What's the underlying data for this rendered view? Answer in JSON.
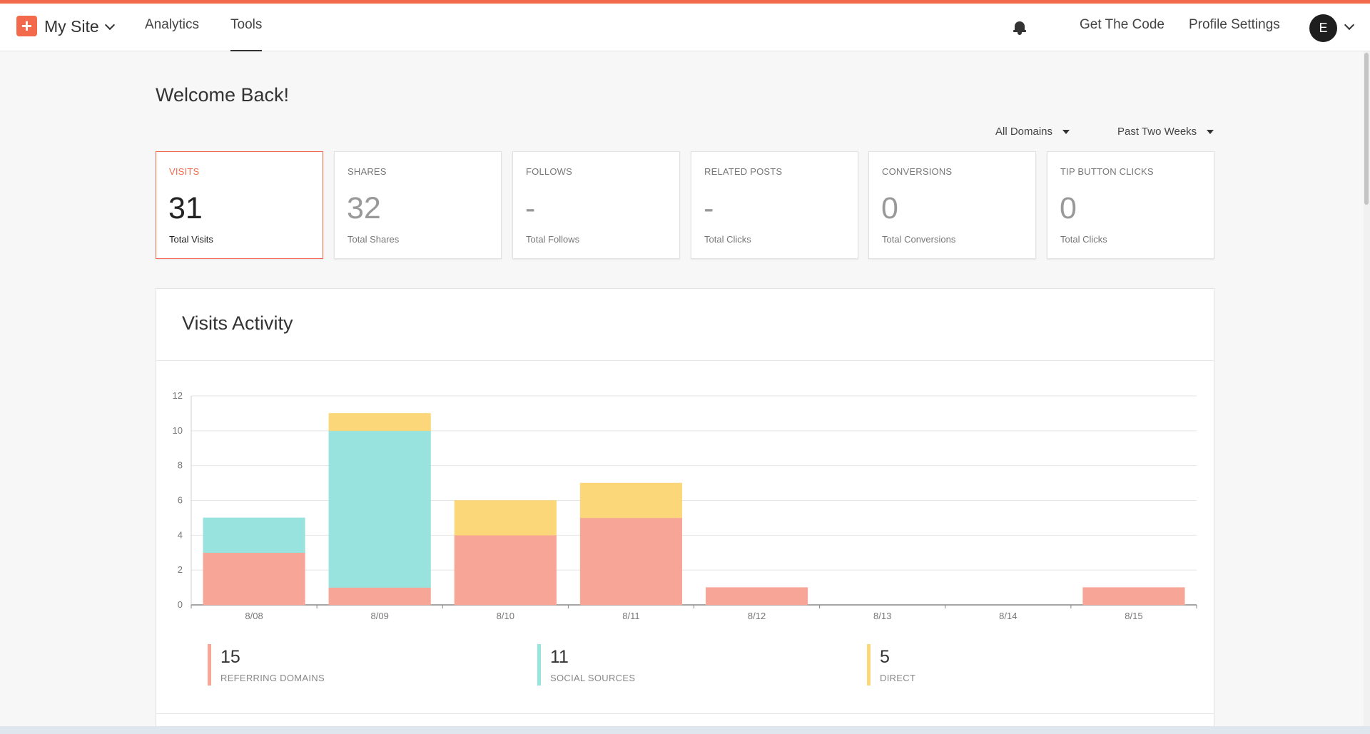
{
  "colors": {
    "accent": "#f26a4b",
    "referring": "#f7a597",
    "social": "#98e3dd",
    "direct": "#fbd77a"
  },
  "header": {
    "logo_icon": "plus-icon",
    "logo_glyph": "+",
    "site_name": "My Site",
    "nav": [
      {
        "label": "Analytics",
        "active": false
      },
      {
        "label": "Tools",
        "active": true
      }
    ],
    "bell_icon": "bell-icon",
    "get_code": "Get The Code",
    "profile_settings": "Profile Settings",
    "avatar_letter": "E"
  },
  "welcome": "Welcome Back!",
  "filters": {
    "domains": "All Domains",
    "period": "Past Two Weeks"
  },
  "stats": [
    {
      "title": "VISITS",
      "value": "31",
      "sub": "Total Visits",
      "active": true
    },
    {
      "title": "SHARES",
      "value": "32",
      "sub": "Total Shares",
      "active": false
    },
    {
      "title": "FOLLOWS",
      "value": "-",
      "sub": "Total Follows",
      "active": false
    },
    {
      "title": "RELATED POSTS",
      "value": "-",
      "sub": "Total Clicks",
      "active": false
    },
    {
      "title": "CONVERSIONS",
      "value": "0",
      "sub": "Total Conversions",
      "active": false
    },
    {
      "title": "TIP BUTTON CLICKS",
      "value": "0",
      "sub": "Total Clicks",
      "active": false
    }
  ],
  "panel_title": "Visits Activity",
  "chart_data": {
    "type": "bar",
    "stacked": true,
    "title": "",
    "xlabel": "",
    "ylabel": "",
    "ylim": [
      0,
      12
    ],
    "yticks": [
      0,
      2,
      4,
      6,
      8,
      10,
      12
    ],
    "grid": true,
    "categories": [
      "8/08",
      "8/09",
      "8/10",
      "8/11",
      "8/12",
      "8/13",
      "8/14",
      "8/15"
    ],
    "series": [
      {
        "name": "REFERRING DOMAINS",
        "color": "#f7a597",
        "values": [
          3,
          1,
          4,
          5,
          1,
          0,
          0,
          1
        ]
      },
      {
        "name": "SOCIAL SOURCES",
        "color": "#98e3dd",
        "values": [
          2,
          9,
          0,
          0,
          0,
          0,
          0,
          0
        ]
      },
      {
        "name": "DIRECT",
        "color": "#fbd77a",
        "values": [
          0,
          1,
          2,
          2,
          0,
          0,
          0,
          0
        ]
      }
    ]
  },
  "legend": [
    {
      "value": "15",
      "label": "REFERRING DOMAINS",
      "color": "#f7a597"
    },
    {
      "value": "11",
      "label": "SOCIAL SOURCES",
      "color": "#98e3dd"
    },
    {
      "value": "5",
      "label": "DIRECT",
      "color": "#fbd77a"
    }
  ]
}
